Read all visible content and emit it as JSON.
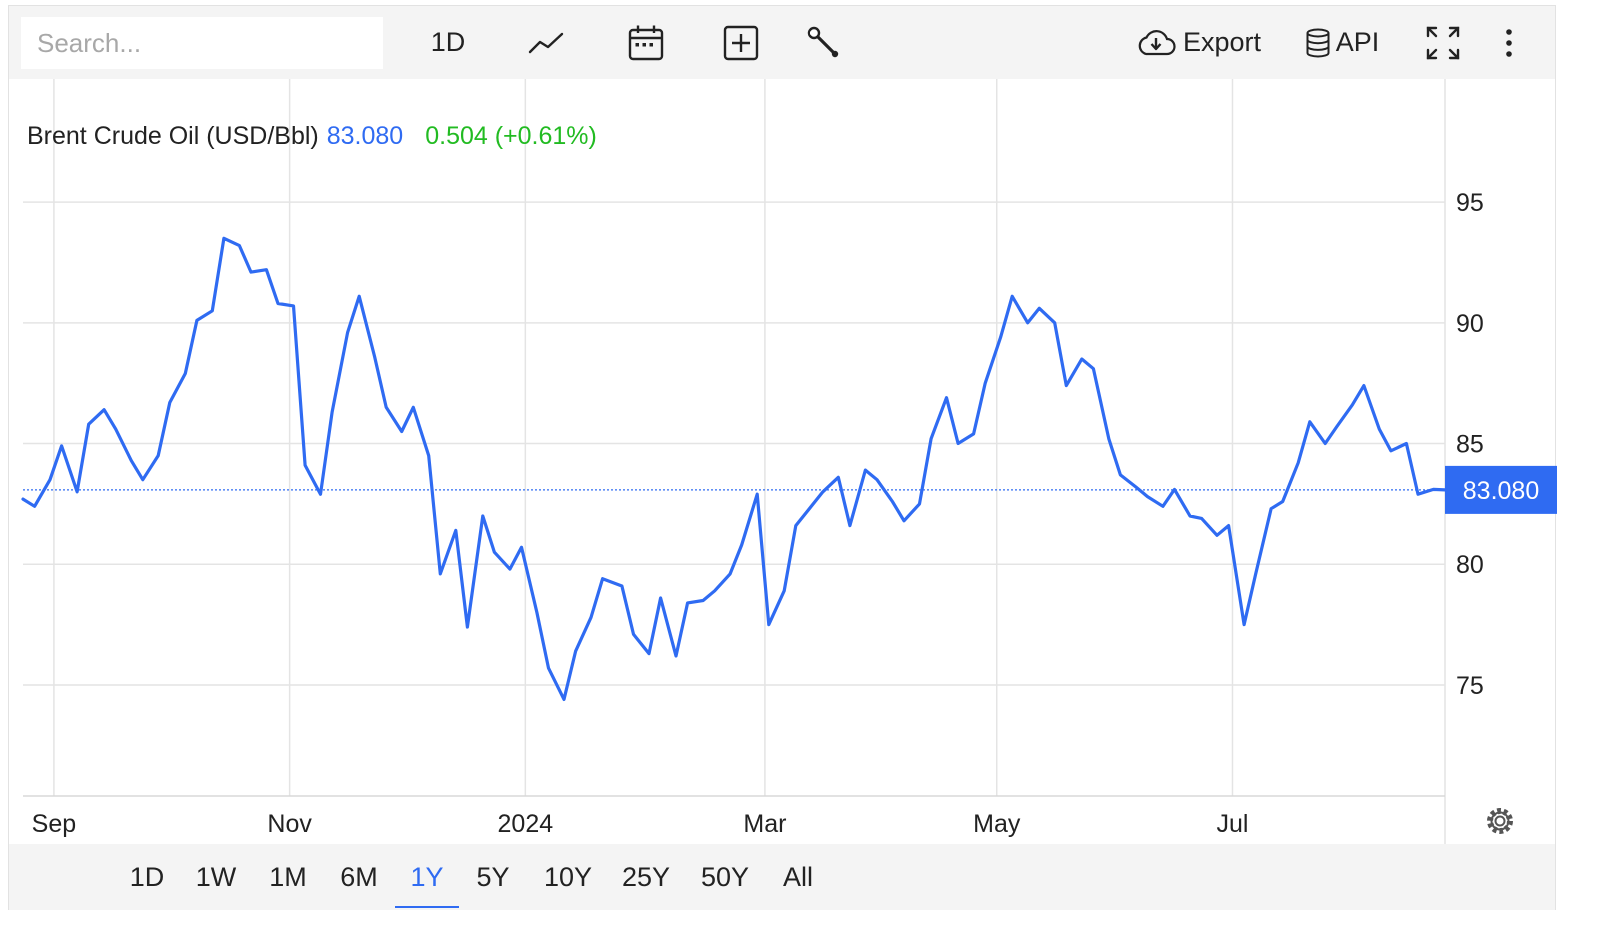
{
  "toolbar": {
    "search_placeholder": "Search...",
    "interval_label": "1D",
    "export_label": "Export",
    "api_label": "API",
    "icons": [
      "line-chart-icon",
      "calendar-icon",
      "add-compare-icon",
      "wrench-icon",
      "cloud-download-icon",
      "database-icon",
      "fullscreen-icon",
      "more-vert-icon"
    ]
  },
  "legend": {
    "name": "Brent Crude Oil (USD/Bbl)",
    "last": "83.080",
    "change": "0.504 (+0.61%)"
  },
  "colors": {
    "line": "#2f6bf2",
    "last_value": "#2f6bf2",
    "change_positive": "#22bb22",
    "grid": "#e4e4e4"
  },
  "range_buttons": [
    "1D",
    "1W",
    "1M",
    "6M",
    "1Y",
    "5Y",
    "10Y",
    "25Y",
    "50Y",
    "All"
  ],
  "active_range": "1Y",
  "chart_data": {
    "type": "line",
    "title": "Brent Crude Oil (USD/Bbl)",
    "last_value_label": "83.080",
    "last_value": 83.08,
    "x_tick_labels": [
      "Sep",
      "Nov",
      "2024",
      "Mar",
      "May",
      "Jul"
    ],
    "y_tick_values": [
      75,
      80,
      85,
      90,
      95
    ],
    "y_axis_position": "right",
    "ylim": [
      70.4,
      100.1
    ],
    "xlim": [
      "2023-07-24",
      "2024-07-26"
    ],
    "grid": true,
    "series": [
      {
        "x": [
          "2023-07-24",
          "2023-07-27",
          "2023-07-31",
          "2023-08-03",
          "2023-08-07",
          "2023-08-10",
          "2023-08-14",
          "2023-08-17",
          "2023-08-21",
          "2023-08-24",
          "2023-08-28",
          "2023-08-31",
          "2023-09-04",
          "2023-09-07",
          "2023-09-11",
          "2023-09-14",
          "2023-09-18",
          "2023-09-21",
          "2023-09-25",
          "2023-09-28",
          "2023-10-02",
          "2023-10-05",
          "2023-10-09",
          "2023-10-12",
          "2023-10-16",
          "2023-10-19",
          "2023-10-23",
          "2023-10-26",
          "2023-10-30",
          "2023-11-02",
          "2023-11-06",
          "2023-11-09",
          "2023-11-13",
          "2023-11-16",
          "2023-11-20",
          "2023-11-23",
          "2023-11-27",
          "2023-11-30",
          "2023-12-04",
          "2023-12-07",
          "2023-12-11",
          "2023-12-14",
          "2023-12-18",
          "2023-12-21",
          "2023-12-26",
          "2023-12-29",
          "2024-01-02",
          "2024-01-05",
          "2024-01-09",
          "2024-01-12",
          "2024-01-16",
          "2024-01-19",
          "2024-01-23",
          "2024-01-26",
          "2024-01-30",
          "2024-02-02",
          "2024-02-06",
          "2024-02-09",
          "2024-02-13",
          "2024-02-16",
          "2024-02-20",
          "2024-02-23",
          "2024-02-27",
          "2024-03-01",
          "2024-03-05",
          "2024-03-08",
          "2024-03-12",
          "2024-03-15",
          "2024-03-19",
          "2024-03-22",
          "2024-03-26",
          "2024-03-29",
          "2024-04-02",
          "2024-04-05",
          "2024-04-09",
          "2024-04-12",
          "2024-04-16",
          "2024-04-19",
          "2024-04-23",
          "2024-04-26",
          "2024-04-30",
          "2024-05-03",
          "2024-05-07",
          "2024-05-10",
          "2024-05-14",
          "2024-05-17",
          "2024-05-21",
          "2024-05-24",
          "2024-05-28",
          "2024-05-31",
          "2024-06-04",
          "2024-06-07",
          "2024-06-11",
          "2024-06-14",
          "2024-06-18",
          "2024-06-21",
          "2024-06-25",
          "2024-06-28",
          "2024-07-02",
          "2024-07-05",
          "2024-07-09",
          "2024-07-12",
          "2024-07-16",
          "2024-07-19",
          "2024-07-23",
          "2024-07-26"
        ],
        "values": [
          82.7,
          82.4,
          83.5,
          84.9,
          83.0,
          85.8,
          86.4,
          85.6,
          84.3,
          83.5,
          84.5,
          86.7,
          87.9,
          90.1,
          90.5,
          93.5,
          93.2,
          92.1,
          92.2,
          90.8,
          90.7,
          84.1,
          82.9,
          86.3,
          89.6,
          91.1,
          88.6,
          86.5,
          85.5,
          86.5,
          84.5,
          79.6,
          81.4,
          77.4,
          82.0,
          80.5,
          79.8,
          80.7,
          78.0,
          75.7,
          74.4,
          76.4,
          77.8,
          79.4,
          79.1,
          77.1,
          76.3,
          78.6,
          76.2,
          78.4,
          78.5,
          78.9,
          79.6,
          80.8,
          82.9,
          77.5,
          78.9,
          81.6,
          82.4,
          83.0,
          83.6,
          81.6,
          83.9,
          83.5,
          82.6,
          81.8,
          82.5,
          85.2,
          86.9,
          85.0,
          85.4,
          87.5,
          89.4,
          91.1,
          90.0,
          90.6,
          90.0,
          87.4,
          88.5,
          88.1,
          85.2,
          83.7,
          83.2,
          82.8,
          82.4,
          83.1,
          82.0,
          81.9,
          81.2,
          81.6,
          77.5,
          79.6,
          82.3,
          82.6,
          84.2,
          85.9,
          85.0,
          85.7,
          86.6,
          87.4,
          85.6,
          84.7,
          85.0,
          82.9,
          83.1,
          83.08
        ]
      }
    ]
  }
}
